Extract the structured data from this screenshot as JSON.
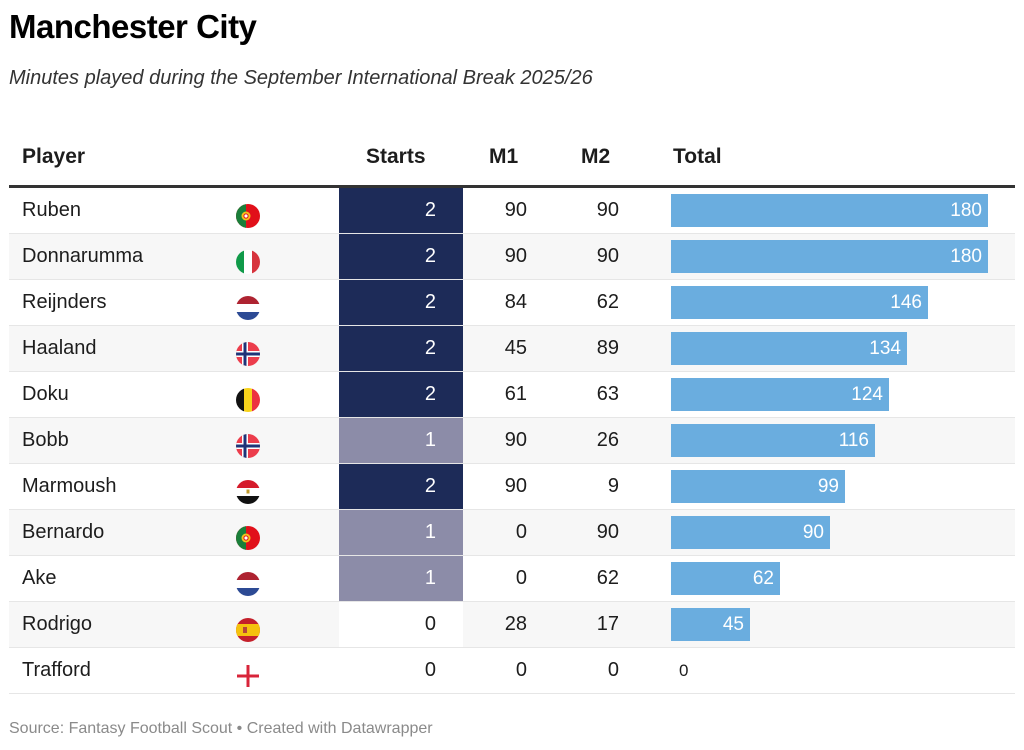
{
  "title": "Manchester City",
  "subtitle": "Minutes played during the September International Break 2025/26",
  "footer": "Source: Fantasy Football Scout • Created with Datawrapper",
  "colors": {
    "starts_2": "#1d2b58",
    "starts_1": "#8c8ca8",
    "starts_0": "#ffffff",
    "bar": "#6aaddf",
    "header_rule": "#333333",
    "stripe": "#f7f7f7"
  },
  "columns": [
    "Player",
    "Starts",
    "M1",
    "M2",
    "Total"
  ],
  "chart_data": {
    "type": "table",
    "title": "Manchester City",
    "subtitle": "Minutes played during the September International Break 2025/26",
    "columns": [
      "Player",
      "Flag",
      "Starts",
      "M1",
      "M2",
      "Total"
    ],
    "total_max": 180,
    "rows": [
      {
        "player": "Ruben",
        "flag": "portugal-flag",
        "starts": 2,
        "m1": 90,
        "m2": 90,
        "total": 180
      },
      {
        "player": "Donnarumma",
        "flag": "italy-flag",
        "starts": 2,
        "m1": 90,
        "m2": 90,
        "total": 180
      },
      {
        "player": "Reijnders",
        "flag": "netherlands-flag",
        "starts": 2,
        "m1": 84,
        "m2": 62,
        "total": 146
      },
      {
        "player": "Haaland",
        "flag": "norway-flag",
        "starts": 2,
        "m1": 45,
        "m2": 89,
        "total": 134
      },
      {
        "player": "Doku",
        "flag": "belgium-flag",
        "starts": 2,
        "m1": 61,
        "m2": 63,
        "total": 124
      },
      {
        "player": "Bobb",
        "flag": "norway-flag",
        "starts": 1,
        "m1": 90,
        "m2": 26,
        "total": 116
      },
      {
        "player": "Marmoush",
        "flag": "egypt-flag",
        "starts": 2,
        "m1": 90,
        "m2": 9,
        "total": 99
      },
      {
        "player": "Bernardo",
        "flag": "portugal-flag",
        "starts": 1,
        "m1": 0,
        "m2": 90,
        "total": 90
      },
      {
        "player": "Ake",
        "flag": "netherlands-flag",
        "starts": 1,
        "m1": 0,
        "m2": 62,
        "total": 62
      },
      {
        "player": "Rodrigo",
        "flag": "spain-flag",
        "starts": 0,
        "m1": 28,
        "m2": 17,
        "total": 45
      },
      {
        "player": "Trafford",
        "flag": "england-flag",
        "starts": 0,
        "m1": 0,
        "m2": 0,
        "total": 0
      }
    ]
  }
}
